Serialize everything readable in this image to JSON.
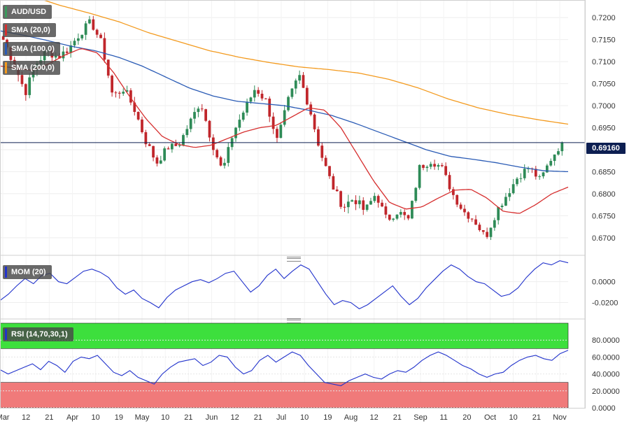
{
  "legend": {
    "symbol": "AUD/USD",
    "sma20": "SMA (20,0)",
    "sma100": "SMA (100,0)",
    "sma200": "SMA (200,0)",
    "mom": "MOM (20)",
    "rsi": "RSI (14,70,30,1)"
  },
  "colors": {
    "up": "#2e8b57",
    "down": "#c0262b",
    "sma20": "#d62f2f",
    "sma100": "#2a5bb5",
    "sma200": "#f39a1e",
    "indicator": "#2233cc",
    "rsi_over": "#3ddf3d",
    "rsi_under": "#f07a7a"
  },
  "last_price": "0.69160",
  "chart_data": [
    {
      "type": "candlestick",
      "title": "AUD/USD",
      "ylim": [
        0.666,
        0.724
      ],
      "y_ticks": [
        "0.7200",
        "0.7150",
        "0.7100",
        "0.7050",
        "0.7000",
        "0.6950",
        "0.6900",
        "0.6850",
        "0.6800",
        "0.6750",
        "0.6700"
      ],
      "y_tick_values": [
        0.72,
        0.715,
        0.71,
        0.705,
        0.7,
        0.695,
        0.69,
        0.685,
        0.68,
        0.675,
        0.67
      ],
      "x_labels": [
        "Mar",
        "12",
        "21",
        "Apr",
        "10",
        "19",
        "May",
        "10",
        "21",
        "Jun",
        "12",
        "21",
        "Jul",
        "10",
        "19",
        "Aug",
        "12",
        "21",
        "Sep",
        "11",
        "20",
        "Oct",
        "10",
        "21",
        "Nov"
      ],
      "anchors": [
        {
          "close": 0.715,
          "noise": 0.0016
        },
        {
          "close": 0.7095,
          "noise": 0.0018
        },
        {
          "close": 0.703,
          "noise": 0.0016
        },
        {
          "close": 0.7095,
          "noise": 0.0015
        },
        {
          "close": 0.7125,
          "noise": 0.0015
        },
        {
          "close": 0.711,
          "noise": 0.0014
        },
        {
          "close": 0.713,
          "noise": 0.0015
        },
        {
          "close": 0.7165,
          "noise": 0.0014
        },
        {
          "close": 0.719,
          "noise": 0.0013
        },
        {
          "close": 0.714,
          "noise": 0.0015
        },
        {
          "close": 0.702,
          "noise": 0.0016
        },
        {
          "close": 0.704,
          "noise": 0.0014
        },
        {
          "close": 0.699,
          "noise": 0.0016
        },
        {
          "close": 0.692,
          "noise": 0.0015
        },
        {
          "close": 0.687,
          "noise": 0.0013
        },
        {
          "close": 0.6905,
          "noise": 0.0012
        },
        {
          "close": 0.691,
          "noise": 0.0012
        },
        {
          "close": 0.696,
          "noise": 0.0013
        },
        {
          "close": 0.701,
          "noise": 0.0014
        },
        {
          "close": 0.692,
          "noise": 0.0014
        },
        {
          "close": 0.685,
          "noise": 0.0012
        },
        {
          "close": 0.694,
          "noise": 0.0013
        },
        {
          "close": 0.699,
          "noise": 0.0014
        },
        {
          "close": 0.704,
          "noise": 0.0014
        },
        {
          "close": 0.701,
          "noise": 0.0015
        },
        {
          "close": 0.692,
          "noise": 0.0014
        },
        {
          "close": 0.701,
          "noise": 0.0015
        },
        {
          "close": 0.707,
          "noise": 0.0014
        },
        {
          "close": 0.699,
          "noise": 0.0014
        },
        {
          "close": 0.689,
          "noise": 0.0013
        },
        {
          "close": 0.682,
          "noise": 0.0014
        },
        {
          "close": 0.677,
          "noise": 0.0018
        },
        {
          "close": 0.679,
          "noise": 0.0015
        },
        {
          "close": 0.676,
          "noise": 0.0014
        },
        {
          "close": 0.68,
          "noise": 0.0013
        },
        {
          "close": 0.674,
          "noise": 0.0013
        },
        {
          "close": 0.676,
          "noise": 0.0014
        },
        {
          "close": 0.674,
          "noise": 0.0013
        },
        {
          "close": 0.686,
          "noise": 0.0014
        },
        {
          "close": 0.6875,
          "noise": 0.0012
        },
        {
          "close": 0.686,
          "noise": 0.0012
        },
        {
          "close": 0.68,
          "noise": 0.0013
        },
        {
          "close": 0.676,
          "noise": 0.0013
        },
        {
          "close": 0.674,
          "noise": 0.0014
        },
        {
          "close": 0.67,
          "noise": 0.0015
        },
        {
          "close": 0.676,
          "noise": 0.0014
        },
        {
          "close": 0.68,
          "noise": 0.0013
        },
        {
          "close": 0.684,
          "noise": 0.0014
        },
        {
          "close": 0.686,
          "noise": 0.0013
        },
        {
          "close": 0.683,
          "noise": 0.0013
        },
        {
          "close": 0.688,
          "noise": 0.0012
        },
        {
          "close": 0.6916,
          "noise": 0.0012
        }
      ],
      "sma20_anchors": [
        0.709,
        0.7085,
        0.708,
        0.7095,
        0.7115,
        0.713,
        0.712,
        0.7075,
        0.702,
        0.697,
        0.693,
        0.6912,
        0.6905,
        0.691,
        0.6925,
        0.694,
        0.695,
        0.6955,
        0.6975,
        0.6995,
        0.699,
        0.695,
        0.689,
        0.683,
        0.678,
        0.6765,
        0.677,
        0.679,
        0.6808,
        0.681,
        0.679,
        0.676,
        0.6755,
        0.6775,
        0.68,
        0.6815
      ],
      "sma100_anchors": [
        0.717,
        0.716,
        0.7148,
        0.7135,
        0.7125,
        0.711,
        0.709,
        0.7065,
        0.704,
        0.7022,
        0.701,
        0.7005,
        0.7,
        0.699,
        0.6978,
        0.696,
        0.694,
        0.692,
        0.69,
        0.6885,
        0.6878,
        0.687,
        0.686,
        0.6852,
        0.685
      ],
      "sma200_anchors": [
        0.727,
        0.725,
        0.7228,
        0.721,
        0.719,
        0.7165,
        0.7145,
        0.7125,
        0.711,
        0.7098,
        0.7088,
        0.7082,
        0.7074,
        0.706,
        0.704,
        0.7015,
        0.6995,
        0.698,
        0.6968,
        0.6958
      ],
      "series": [
        {
          "name": "SMA (20,0)",
          "color": "#d62f2f"
        },
        {
          "name": "SMA (100,0)",
          "color": "#2a5bb5"
        },
        {
          "name": "SMA (200,0)",
          "color": "#f39a1e"
        }
      ]
    },
    {
      "type": "line",
      "title": "MOM (20)",
      "ylim": [
        -0.033,
        0.0205
      ],
      "y_ticks": [
        "0.0000",
        "-0.0200"
      ],
      "y_tick_values": [
        0,
        -0.02
      ],
      "values": [
        -0.018,
        -0.012,
        -0.004,
        0.003,
        -0.002,
        0.006,
        0.008,
        0.0,
        -0.002,
        0.004,
        0.01,
        0.012,
        0.009,
        0.004,
        -0.006,
        -0.012,
        -0.008,
        -0.016,
        -0.02,
        -0.025,
        -0.015,
        -0.008,
        -0.004,
        0.0,
        0.002,
        -0.001,
        0.003,
        0.008,
        0.01,
        0.0,
        -0.01,
        -0.004,
        0.006,
        0.012,
        0.003,
        0.01,
        0.016,
        0.012,
        0.0,
        -0.012,
        -0.022,
        -0.018,
        -0.02,
        -0.026,
        -0.022,
        -0.016,
        -0.01,
        -0.004,
        -0.014,
        -0.022,
        -0.016,
        -0.006,
        0.002,
        0.01,
        0.016,
        0.012,
        0.005,
        0.0,
        -0.002,
        -0.008,
        -0.014,
        -0.012,
        -0.006,
        0.004,
        0.012,
        0.018,
        0.016,
        0.02,
        0.018
      ]
    },
    {
      "type": "line",
      "title": "RSI (14,70,30,1)",
      "ylim": [
        0,
        100
      ],
      "y_ticks": [
        "80.0000",
        "60.0000",
        "40.0000",
        "20.0000",
        "0.0000"
      ],
      "y_tick_values": [
        80,
        60,
        40,
        20,
        0
      ],
      "bands": {
        "overbought": 70,
        "oversold": 30
      },
      "values": [
        45,
        40,
        44,
        48,
        52,
        45,
        55,
        50,
        42,
        55,
        60,
        58,
        62,
        52,
        42,
        38,
        44,
        36,
        32,
        28,
        40,
        48,
        54,
        56,
        58,
        50,
        54,
        62,
        60,
        48,
        40,
        44,
        56,
        62,
        54,
        60,
        66,
        62,
        50,
        40,
        30,
        28,
        26,
        32,
        36,
        40,
        36,
        34,
        40,
        44,
        42,
        48,
        56,
        62,
        66,
        62,
        56,
        50,
        46,
        40,
        36,
        40,
        42,
        50,
        56,
        60,
        62,
        58,
        56,
        64,
        68
      ]
    }
  ]
}
